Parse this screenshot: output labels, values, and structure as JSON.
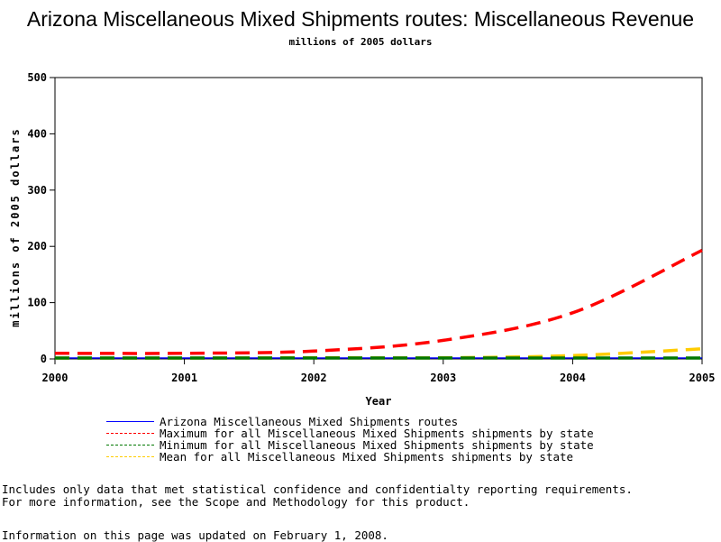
{
  "chart_data": {
    "type": "line",
    "title": "Arizona Miscellaneous Mixed Shipments routes: Miscellaneous Revenue",
    "subtitle": "millions of 2005 dollars",
    "xlabel": "Year",
    "ylabel": "millions of 2005 dollars",
    "xlim": [
      2000,
      2005
    ],
    "ylim": [
      0,
      500
    ],
    "xticks": [
      "2000",
      "2001",
      "2002",
      "2003",
      "2004",
      "2005"
    ],
    "yticks": [
      "0",
      "100",
      "200",
      "300",
      "400",
      "500"
    ],
    "grid": false,
    "legend_position": "bottom",
    "x": [
      2000,
      2001,
      2002,
      2003,
      2004,
      2005
    ],
    "series": [
      {
        "name": "Arizona Miscellaneous Mixed Shipments routes",
        "color": "#0000ff",
        "dash": "solid",
        "values": [
          0,
          0,
          0,
          0,
          0,
          0
        ]
      },
      {
        "name": "Maximum for all Miscellaneous Mixed Shipments shipments by state",
        "color": "#ff0000",
        "dash": "dashed",
        "values": [
          10,
          10,
          14,
          33,
          82,
          193
        ]
      },
      {
        "name": "Minimum for all Miscellaneous Mixed Shipments shipments by state",
        "color": "#007700",
        "dash": "dashed",
        "values": [
          0,
          0,
          0,
          0,
          0,
          0
        ]
      },
      {
        "name": "Mean for all Miscellaneous Mixed Shipments shipments by state",
        "color": "#ffcc00",
        "dash": "dashed",
        "values": [
          0,
          0,
          2,
          2,
          6,
          18
        ]
      }
    ]
  },
  "notes": {
    "line1": "Includes only data that met statistical confidence and confidentialty reporting requirements.",
    "line2": "For more information, see the Scope and Methodology for this product.",
    "updated": "Information on this page was updated on February 1, 2008."
  }
}
